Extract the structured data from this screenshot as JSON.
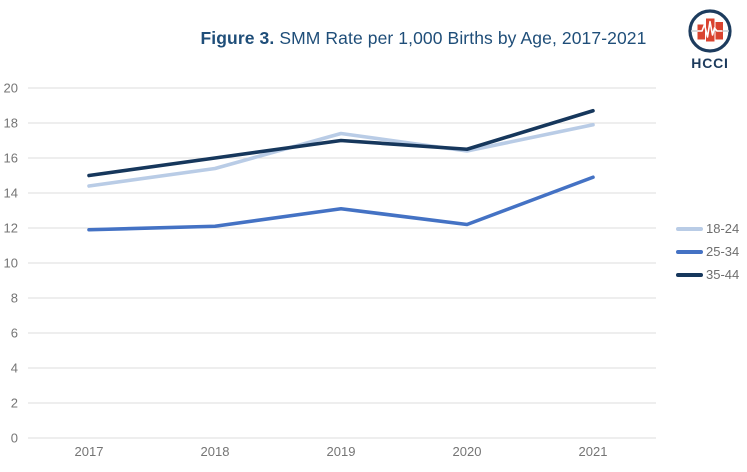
{
  "header": {
    "title_prefix": "Figure 3.",
    "title_rest": " SMM Rate per 1,000 Births by Age, 2017-2021",
    "title_color": "#1F4E79"
  },
  "logo": {
    "text": "HCCI",
    "circle_color": "#1D3C5E",
    "bar_color": "#D9432F",
    "icon": "hcci-heartbeat-hospital-icon"
  },
  "chart_data": {
    "type": "line",
    "title": "Figure 3. SMM Rate per 1,000 Births by Age, 2017-2021",
    "categories": [
      "2017",
      "2018",
      "2019",
      "2020",
      "2021"
    ],
    "series": [
      {
        "name": "18-24",
        "color": "#B9CCE6",
        "values": [
          14.4,
          15.4,
          17.4,
          16.4,
          17.9
        ]
      },
      {
        "name": "25-34",
        "color": "#4472C4",
        "values": [
          11.9,
          12.1,
          13.1,
          12.2,
          14.9
        ]
      },
      {
        "name": "35-44",
        "color": "#16375C",
        "values": [
          15.0,
          16.0,
          17.0,
          16.5,
          18.7
        ]
      }
    ],
    "xlabel": "",
    "ylabel": "",
    "ylim": [
      0,
      20
    ],
    "ytick_step": 2,
    "grid": "horizontal-only",
    "grid_color": "#DDDDDD",
    "tick_label_color": "#757575",
    "legend_position": "right"
  }
}
